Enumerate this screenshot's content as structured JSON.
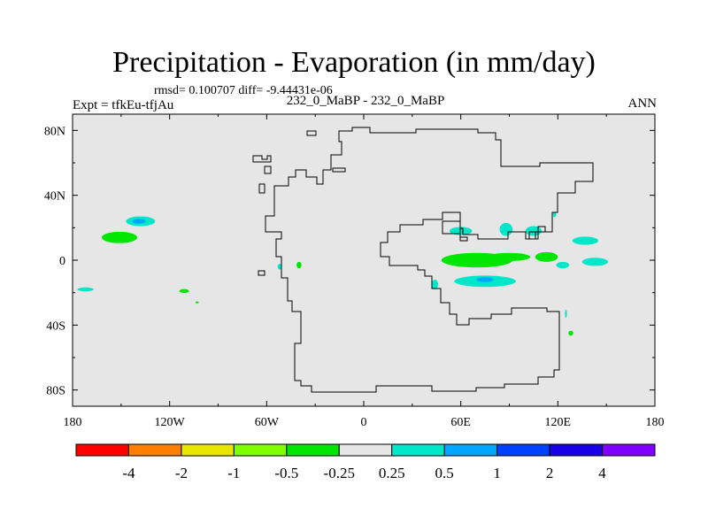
{
  "title": "Precipitation - Evaporation (in mm/day)",
  "stats": "rmsd= 0.100707 diff= -9.44431e-06",
  "left_label": "Expt = tfkEu-tfjAu",
  "center_label": "232_0_MaBP - 232_0_MaBP",
  "right_label": "ANN",
  "chart_data": {
    "type": "heatmap",
    "title": "Precipitation - Evaporation (in mm/day)",
    "x_ticks": [
      {
        "lon": -180,
        "label": "180"
      },
      {
        "lon": -120,
        "label": "120W"
      },
      {
        "lon": -60,
        "label": "60W"
      },
      {
        "lon": 0,
        "label": "0"
      },
      {
        "lon": 60,
        "label": "60E"
      },
      {
        "lon": 120,
        "label": "120E"
      },
      {
        "lon": 180,
        "label": "180"
      }
    ],
    "y_ticks": [
      {
        "lat": 80,
        "label": "80N"
      },
      {
        "lat": 40,
        "label": "40N"
      },
      {
        "lat": 0,
        "label": "0"
      },
      {
        "lat": -40,
        "label": "40S"
      },
      {
        "lat": -80,
        "label": "80S"
      }
    ],
    "xlim": [
      -180,
      180
    ],
    "ylim": [
      -90,
      90
    ],
    "background_color": "#e6e6e6",
    "colorbar": {
      "colors": [
        "#ff0000",
        "#ff8000",
        "#e6e600",
        "#80ff00",
        "#00e600",
        "#e6e6e6",
        "#00e6c8",
        "#00a6ff",
        "#0040ff",
        "#1a00e6",
        "#8000ff"
      ],
      "labels": [
        "-4",
        "-2",
        "-1",
        "-0.5",
        "-0.25",
        "0.25",
        "0.5",
        "1",
        "2",
        "4"
      ]
    },
    "anomalies": [
      {
        "lon": -138,
        "lat": 24,
        "dlon": 9,
        "dlat": 3,
        "color": "#00e6c8"
      },
      {
        "lon": -139,
        "lat": 24,
        "dlon": 4,
        "dlat": 1.5,
        "color": "#00a6ff"
      },
      {
        "lon": -151,
        "lat": 14,
        "dlon": 11,
        "dlat": 3.5,
        "color": "#00e600"
      },
      {
        "lon": -172,
        "lat": -18,
        "dlon": 5,
        "dlat": 1.2,
        "color": "#00e6c8"
      },
      {
        "lon": -111,
        "lat": -19,
        "dlon": 3,
        "dlat": 1.2,
        "color": "#00e600"
      },
      {
        "lon": -103,
        "lat": -26,
        "dlon": 1,
        "dlat": 0.6,
        "color": "#00e600"
      },
      {
        "lon": -52,
        "lat": -4,
        "dlon": 1.2,
        "dlat": 1.8,
        "color": "#00e6c8"
      },
      {
        "lon": -40,
        "lat": -3,
        "dlon": 1.5,
        "dlat": 2,
        "color": "#00e600"
      },
      {
        "lon": 70,
        "lat": 0,
        "dlon": 22,
        "dlat": 4.5,
        "color": "#00e600"
      },
      {
        "lon": 90,
        "lat": 2,
        "dlon": 13,
        "dlat": 2.5,
        "color": "#00e600"
      },
      {
        "lon": 113,
        "lat": 2,
        "dlon": 7,
        "dlat": 3,
        "color": "#00e600"
      },
      {
        "lon": 123,
        "lat": -3,
        "dlon": 4,
        "dlat": 2,
        "color": "#00e6c8"
      },
      {
        "lon": 75,
        "lat": -13,
        "dlon": 19,
        "dlat": 3.5,
        "color": "#00e6c8"
      },
      {
        "lon": 75,
        "lat": -12,
        "dlon": 5,
        "dlat": 1.5,
        "color": "#00a6ff"
      },
      {
        "lon": 44,
        "lat": -15,
        "dlon": 2,
        "dlat": 3,
        "color": "#00e6c8"
      },
      {
        "lon": 60,
        "lat": 18,
        "dlon": 7,
        "dlat": 2.5,
        "color": "#00e6c8"
      },
      {
        "lon": 88,
        "lat": 19,
        "dlon": 4,
        "dlat": 4,
        "color": "#00e6c8"
      },
      {
        "lon": 105,
        "lat": 18,
        "dlon": 5,
        "dlat": 3,
        "color": "#00e6c8"
      },
      {
        "lon": 137,
        "lat": 12,
        "dlon": 8,
        "dlat": 2.5,
        "color": "#00e6c8"
      },
      {
        "lon": 143,
        "lat": -1,
        "dlon": 8,
        "dlat": 2.5,
        "color": "#00e6c8"
      },
      {
        "lon": 128,
        "lat": -45,
        "dlon": 1.5,
        "dlat": 1.5,
        "color": "#00e600"
      },
      {
        "lon": 125,
        "lat": -33,
        "dlon": 0.6,
        "dlat": 2.5,
        "color": "#00e6c8"
      },
      {
        "lon": 118,
        "lat": 28,
        "dlon": 1,
        "dlat": 1.5,
        "color": "#00e6c8"
      }
    ]
  }
}
